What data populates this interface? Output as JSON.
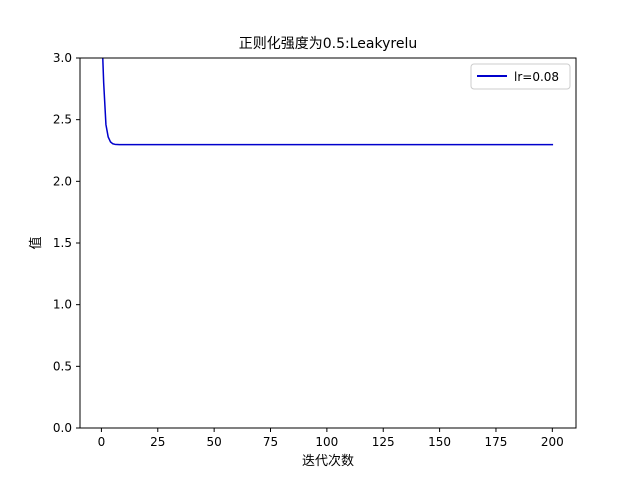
{
  "chart_data": {
    "type": "line",
    "title": "正则化强度为0.5:Leakyrelu",
    "xlabel": "迭代次数",
    "ylabel": "值",
    "xlim": [
      -9.5,
      210.5
    ],
    "ylim": [
      0,
      3.0
    ],
    "xticks": [
      0,
      25,
      50,
      75,
      100,
      125,
      150,
      175,
      200
    ],
    "yticks": [
      0.0,
      0.5,
      1.0,
      1.5,
      2.0,
      2.5,
      3.0
    ],
    "xtick_labels": [
      "0",
      "25",
      "50",
      "75",
      "100",
      "125",
      "150",
      "175",
      "200"
    ],
    "ytick_labels": [
      "0.0",
      "0.5",
      "1.0",
      "1.5",
      "2.0",
      "2.5",
      "3.0"
    ],
    "grid": false,
    "legend_position": "top-right",
    "series": [
      {
        "name": "lr=0.08",
        "color": "#0000cc",
        "x": [
          0,
          1,
          2,
          3,
          4,
          5,
          6,
          8,
          10,
          15,
          20,
          50,
          100,
          150,
          200
        ],
        "y": [
          3.3,
          2.8,
          2.46,
          2.36,
          2.32,
          2.305,
          2.3,
          2.298,
          2.298,
          2.298,
          2.298,
          2.298,
          2.298,
          2.298,
          2.298
        ]
      }
    ]
  }
}
